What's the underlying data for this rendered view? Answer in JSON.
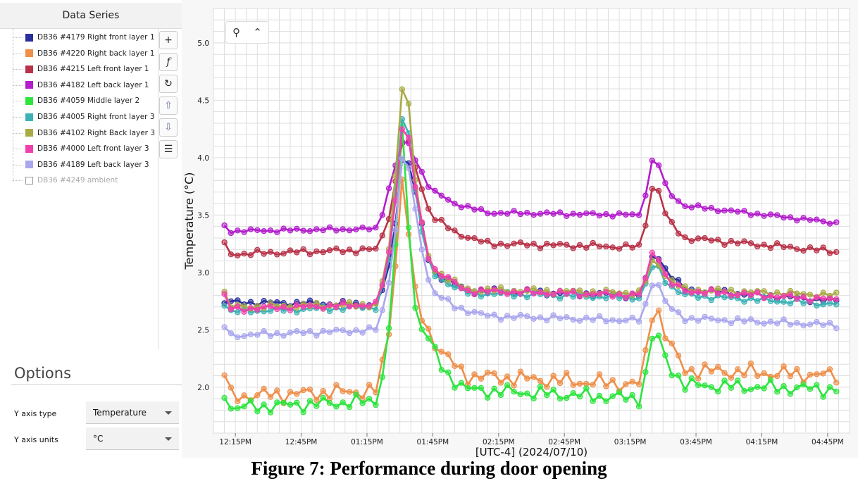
{
  "sidebar": {
    "header": "Data Series",
    "series": [
      {
        "label": "DB36 #4179 Right front layer 1",
        "color": "#2a2f9e",
        "enabled": true
      },
      {
        "label": "DB36 #4220 Right back layer 1",
        "color": "#ee8f4a",
        "enabled": true
      },
      {
        "label": "DB36 #4215 Left front layer 1",
        "color": "#b83349",
        "enabled": true
      },
      {
        "label": "DB36 #4182 Left back layer 1",
        "color": "#b31dcc",
        "enabled": true
      },
      {
        "label": "DB36 #4059 Middle layer 2",
        "color": "#2ee43f",
        "enabled": true
      },
      {
        "label": "DB36 #4005 Right front layer 3",
        "color": "#3cb2b5",
        "enabled": true
      },
      {
        "label": "DB36 #4102 Right Back layer 3",
        "color": "#a9ab45",
        "enabled": true
      },
      {
        "label": "DB36 #4000 Left front layer 3",
        "color": "#f23fae",
        "enabled": true
      },
      {
        "label": "DB36 #4189 Left back layer 3",
        "color": "#aaa7ee",
        "enabled": true
      },
      {
        "label": "DB36 #4249 ambient",
        "color": "#ffffff",
        "enabled": false
      }
    ],
    "tools": [
      {
        "icon": "plus-icon",
        "glyph": "+"
      },
      {
        "icon": "function-icon",
        "glyph": "f"
      },
      {
        "icon": "refresh-icon",
        "glyph": "↻"
      },
      {
        "icon": "move-up-icon",
        "glyph": "⇧"
      },
      {
        "icon": "move-down-icon",
        "glyph": "⇩"
      },
      {
        "icon": "menu-icon",
        "glyph": "☰"
      }
    ]
  },
  "options": {
    "title": "Options",
    "y_axis_type_label": "Y axis type",
    "y_axis_type_value": "Temperature",
    "y_axis_units_label": "Y axis units",
    "y_axis_units_value": "°C"
  },
  "zoom": {
    "icons": [
      "zoom-icon",
      "collapse-up-icon"
    ]
  },
  "caption": "Figure 7: Performance during door opening",
  "chart_data": {
    "type": "line",
    "ylabel": "Temperature (°C)",
    "xlabel": "[UTC-4]  (2024/07/10)",
    "ylim": [
      1.6,
      5.3
    ],
    "xlim": [
      "12:05",
      "04:55"
    ],
    "y_ticks": [
      "2.0",
      "2.5",
      "3.0",
      "3.5",
      "4.0",
      "4.5",
      "5.0"
    ],
    "x_ticks": [
      "12:15PM",
      "12:45PM",
      "01:15PM",
      "01:45PM",
      "02:15PM",
      "02:45PM",
      "03:15PM",
      "03:45PM",
      "04:15PM",
      "04:45PM"
    ],
    "grid": true,
    "markers": "circle",
    "time_step_minutes": 3,
    "start_time": "12:10",
    "series": [
      {
        "name": "DB36 #4179 Right front layer 1",
        "color": "#2a2f9e",
        "keypoints": [
          [
            "12:10",
            2.74
          ],
          [
            "01:20",
            2.72
          ],
          [
            "01:26",
            3.1
          ],
          [
            "01:32",
            4.15
          ],
          [
            "01:38",
            3.6
          ],
          [
            "01:44",
            3.02
          ],
          [
            "02:00",
            2.84
          ],
          [
            "03:20",
            2.8
          ],
          [
            "03:26",
            3.2
          ],
          [
            "03:32",
            3.0
          ],
          [
            "03:40",
            2.85
          ],
          [
            "04:50",
            2.75
          ]
        ],
        "wave": 0.03
      },
      {
        "name": "DB36 #4220 Right back layer 1",
        "color": "#ee8f4a",
        "keypoints": [
          [
            "12:10",
            2.12
          ],
          [
            "12:13",
            1.92
          ],
          [
            "01:20",
            1.97
          ],
          [
            "01:26",
            2.6
          ],
          [
            "01:32",
            4.05
          ],
          [
            "01:35",
            3.0
          ],
          [
            "01:38",
            2.7
          ],
          [
            "01:44",
            2.45
          ],
          [
            "01:50",
            2.28
          ],
          [
            "02:00",
            2.1
          ],
          [
            "03:20",
            2.02
          ],
          [
            "03:26",
            2.78
          ],
          [
            "03:32",
            2.4
          ],
          [
            "03:40",
            2.15
          ],
          [
            "04:50",
            2.1
          ]
        ],
        "wave": 0.08
      },
      {
        "name": "DB36 #4215 Left front layer 1",
        "color": "#b83349",
        "keypoints": [
          [
            "12:10",
            3.24
          ],
          [
            "12:13",
            3.16
          ],
          [
            "01:20",
            3.2
          ],
          [
            "01:26",
            3.55
          ],
          [
            "01:32",
            4.25
          ],
          [
            "01:38",
            3.85
          ],
          [
            "01:44",
            3.5
          ],
          [
            "01:55",
            3.35
          ],
          [
            "02:10",
            3.25
          ],
          [
            "03:20",
            3.22
          ],
          [
            "03:26",
            3.84
          ],
          [
            "03:32",
            3.45
          ],
          [
            "03:40",
            3.3
          ],
          [
            "04:50",
            3.18
          ]
        ],
        "wave": 0.03
      },
      {
        "name": "DB36 #4182 Left back layer 1",
        "color": "#b31dcc",
        "keypoints": [
          [
            "12:10",
            3.4
          ],
          [
            "12:13",
            3.36
          ],
          [
            "01:20",
            3.38
          ],
          [
            "01:26",
            3.8
          ],
          [
            "01:32",
            4.2
          ],
          [
            "01:38",
            3.95
          ],
          [
            "01:44",
            3.72
          ],
          [
            "01:55",
            3.6
          ],
          [
            "02:10",
            3.52
          ],
          [
            "03:20",
            3.5
          ],
          [
            "03:26",
            4.06
          ],
          [
            "03:32",
            3.7
          ],
          [
            "03:40",
            3.58
          ],
          [
            "04:50",
            3.43
          ]
        ],
        "wave": 0.02
      },
      {
        "name": "DB36 #4059 Middle layer 2",
        "color": "#2ee43f",
        "keypoints": [
          [
            "12:10",
            1.96
          ],
          [
            "12:13",
            1.82
          ],
          [
            "01:20",
            1.88
          ],
          [
            "01:26",
            2.6
          ],
          [
            "01:32",
            4.56
          ],
          [
            "01:35",
            2.88
          ],
          [
            "01:38",
            2.6
          ],
          [
            "01:44",
            2.38
          ],
          [
            "01:50",
            2.14
          ],
          [
            "02:00",
            1.98
          ],
          [
            "03:20",
            1.9
          ],
          [
            "03:26",
            2.53
          ],
          [
            "03:32",
            2.2
          ],
          [
            "03:40",
            2.02
          ],
          [
            "04:50",
            1.98
          ]
        ],
        "wave": 0.07
      },
      {
        "name": "DB36 #4005 Right front layer 3",
        "color": "#3cb2b5",
        "keypoints": [
          [
            "12:10",
            2.73
          ],
          [
            "12:13",
            2.66
          ],
          [
            "01:20",
            2.7
          ],
          [
            "01:26",
            3.2
          ],
          [
            "01:32",
            4.57
          ],
          [
            "01:38",
            3.55
          ],
          [
            "01:44",
            3.0
          ],
          [
            "02:00",
            2.82
          ],
          [
            "03:20",
            2.78
          ],
          [
            "03:26",
            3.1
          ],
          [
            "03:32",
            2.9
          ],
          [
            "03:40",
            2.8
          ],
          [
            "04:50",
            2.72
          ]
        ],
        "wave": 0.03
      },
      {
        "name": "DB36 #4102 Right Back layer 3",
        "color": "#a9ab45",
        "keypoints": [
          [
            "12:10",
            2.82
          ],
          [
            "12:13",
            2.7
          ],
          [
            "01:20",
            2.72
          ],
          [
            "01:26",
            3.3
          ],
          [
            "01:32",
            4.89
          ],
          [
            "01:38",
            3.6
          ],
          [
            "01:44",
            3.05
          ],
          [
            "02:00",
            2.85
          ],
          [
            "03:20",
            2.82
          ],
          [
            "03:26",
            3.14
          ],
          [
            "03:32",
            2.95
          ],
          [
            "03:40",
            2.85
          ],
          [
            "04:50",
            2.8
          ]
        ],
        "wave": 0.03
      },
      {
        "name": "DB36 #4000 Left front layer 3",
        "color": "#f23fae",
        "keypoints": [
          [
            "12:10",
            2.8
          ],
          [
            "12:13",
            2.68
          ],
          [
            "01:20",
            2.72
          ],
          [
            "01:26",
            3.25
          ],
          [
            "01:32",
            4.45
          ],
          [
            "01:38",
            3.6
          ],
          [
            "01:44",
            3.05
          ],
          [
            "02:00",
            2.84
          ],
          [
            "03:20",
            2.8
          ],
          [
            "03:26",
            3.24
          ],
          [
            "03:32",
            2.92
          ],
          [
            "03:40",
            2.84
          ],
          [
            "04:50",
            2.76
          ]
        ],
        "wave": 0.03
      },
      {
        "name": "DB36 #4189 Left back layer 3",
        "color": "#aaa7ee",
        "keypoints": [
          [
            "12:10",
            2.53
          ],
          [
            "12:13",
            2.45
          ],
          [
            "01:20",
            2.5
          ],
          [
            "01:26",
            3.0
          ],
          [
            "01:32",
            4.17
          ],
          [
            "01:38",
            3.4
          ],
          [
            "01:44",
            2.85
          ],
          [
            "01:55",
            2.7
          ],
          [
            "02:10",
            2.62
          ],
          [
            "03:20",
            2.58
          ],
          [
            "03:26",
            2.98
          ],
          [
            "03:32",
            2.7
          ],
          [
            "03:40",
            2.6
          ],
          [
            "04:50",
            2.54
          ]
        ],
        "wave": 0.03
      }
    ]
  }
}
